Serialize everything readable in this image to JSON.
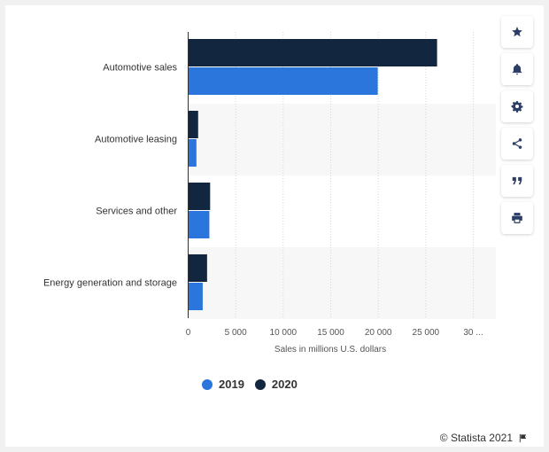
{
  "chart_data": {
    "type": "bar",
    "orientation": "horizontal",
    "categories": [
      "Automotive sales",
      "Automotive leasing",
      "Services and other",
      "Energy generation and storage"
    ],
    "series": [
      {
        "name": "2019",
        "color": "#2a76dd",
        "values": [
          19950,
          870,
          2230,
          1530
        ]
      },
      {
        "name": "2020",
        "color": "#13263f",
        "values": [
          26190,
          1050,
          2310,
          1990
        ]
      }
    ],
    "xlabel": "Sales in millions U.S. dollars",
    "ylabel": "",
    "xlim": [
      0,
      30000
    ],
    "x_tick_labels": [
      "0",
      "5 000",
      "10 000",
      "15 000",
      "20 000",
      "25 000",
      "30 ..."
    ],
    "grid": "vertical dashed",
    "legend_position": "bottom-left"
  },
  "toolbar": {
    "buttons": [
      {
        "icon": "star-icon"
      },
      {
        "icon": "bell-icon"
      },
      {
        "icon": "gear-icon"
      },
      {
        "icon": "share-icon"
      },
      {
        "icon": "quote-icon"
      },
      {
        "icon": "print-icon"
      }
    ]
  },
  "footer": {
    "credit": "© Statista 2021"
  }
}
